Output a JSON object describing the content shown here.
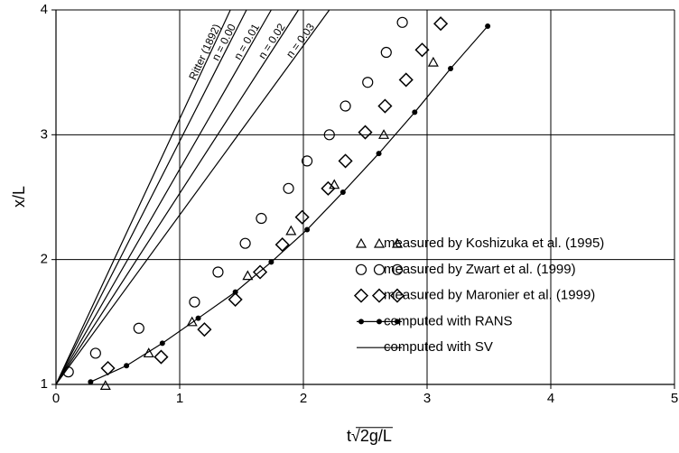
{
  "chart_data": {
    "type": "scatter",
    "xlabel": "t√2g/L",
    "ylabel": "x/L",
    "xlim": [
      0,
      5
    ],
    "ylim": [
      1,
      4
    ],
    "xticks": [
      0,
      1,
      2,
      3,
      4,
      5
    ],
    "yticks": [
      1,
      2,
      3,
      4
    ],
    "grid": true,
    "legend": "lower right",
    "series": [
      {
        "name": "measured by Koshizuka et al. (1995)",
        "marker": "triangle",
        "color": "#000000",
        "x": [
          0.4,
          0.75,
          1.1,
          1.55,
          1.9,
          2.25,
          2.65,
          3.05
        ],
        "values": [
          0.99,
          1.25,
          1.5,
          1.87,
          2.23,
          2.6,
          3.0,
          3.58
        ]
      },
      {
        "name": "measured by Zwart et al. (1999)",
        "marker": "circle",
        "color": "#000000",
        "x": [
          0.1,
          0.32,
          0.67,
          1.12,
          1.31,
          1.53,
          1.66,
          1.88,
          2.03,
          2.21,
          2.34,
          2.52,
          2.67,
          2.8
        ],
        "values": [
          1.1,
          1.25,
          1.45,
          1.66,
          1.9,
          2.13,
          2.33,
          2.57,
          2.79,
          3.0,
          3.23,
          3.42,
          3.66,
          3.9
        ]
      },
      {
        "name": "measured by Maronier et al. (1999)",
        "marker": "diamond",
        "color": "#000000",
        "x": [
          0.42,
          0.85,
          1.2,
          1.45,
          1.65,
          1.83,
          1.99,
          2.2,
          2.34,
          2.5,
          2.66,
          2.83,
          2.96,
          3.11
        ],
        "values": [
          1.13,
          1.22,
          1.44,
          1.68,
          1.9,
          2.12,
          2.34,
          2.57,
          2.79,
          3.02,
          3.23,
          3.44,
          3.68,
          3.89
        ]
      },
      {
        "name": "computed with RANS",
        "marker": "dot-line",
        "color": "#000000",
        "x": [
          0.28,
          0.57,
          0.86,
          1.15,
          1.45,
          1.74,
          2.03,
          2.32,
          2.61,
          2.9,
          3.19,
          3.49
        ],
        "values": [
          1.02,
          1.15,
          1.33,
          1.53,
          1.74,
          1.98,
          2.24,
          2.54,
          2.85,
          3.18,
          3.53,
          3.87
        ]
      },
      {
        "name": "computed with SV",
        "marker": "line",
        "color": "#000000",
        "lines": [
          {
            "label": "Ritter (1892)",
            "x": [
              0,
              1.41
            ],
            "values": [
              1,
              4
            ]
          },
          {
            "label": "n = 0.00",
            "x": [
              0,
              1.54
            ],
            "values": [
              1,
              4
            ]
          },
          {
            "label": "n = 0.01",
            "x": [
              0,
              1.74
            ],
            "values": [
              1,
              4
            ]
          },
          {
            "label": "n = 0.02",
            "x": [
              0,
              1.96
            ],
            "values": [
              1,
              4
            ]
          },
          {
            "label": "n = 0.03",
            "x": [
              0,
              2.21
            ],
            "values": [
              1,
              4
            ]
          }
        ]
      }
    ]
  }
}
